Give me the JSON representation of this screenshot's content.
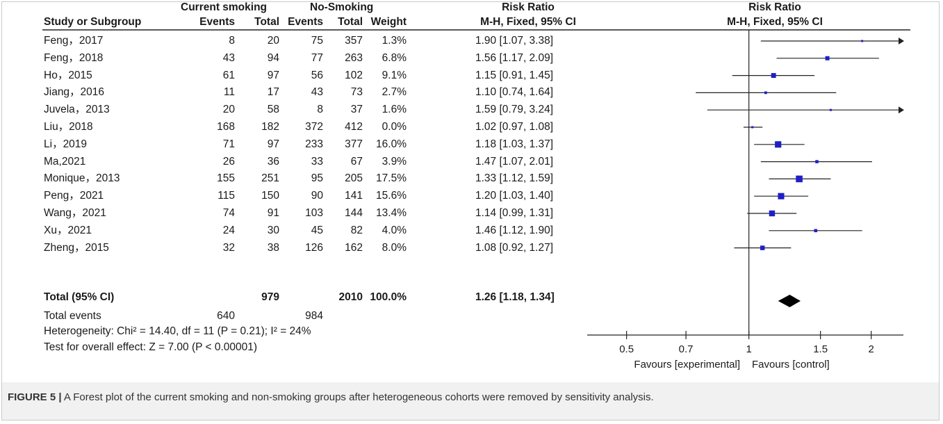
{
  "table": {
    "group_headers": {
      "experimental": "Current smoking",
      "control": "No-Smoking",
      "effect": "Risk Ratio",
      "plot": "Risk Ratio"
    },
    "columns": {
      "study": "Study or Subgroup",
      "events1": "Events",
      "total1": "Total",
      "events2": "Events",
      "total2": "Total",
      "weight": "Weight",
      "ci": "M-H, Fixed, 95% CI",
      "plot_ci": "M-H, Fixed, 95% CI"
    },
    "rows": [
      {
        "study": "Feng，2017",
        "e1": "8",
        "t1": "20",
        "e2": "75",
        "t2": "357",
        "weight": "1.3%",
        "ci": "1.90 [1.07, 3.38]"
      },
      {
        "study": "Feng，2018",
        "e1": "43",
        "t1": "94",
        "e2": "77",
        "t2": "263",
        "weight": "6.8%",
        "ci": "1.56 [1.17, 2.09]"
      },
      {
        "study": "Ho，2015",
        "e1": "61",
        "t1": "97",
        "e2": "56",
        "t2": "102",
        "weight": "9.1%",
        "ci": "1.15 [0.91, 1.45]"
      },
      {
        "study": "Jiang，2016",
        "e1": "11",
        "t1": "17",
        "e2": "43",
        "t2": "73",
        "weight": "2.7%",
        "ci": "1.10 [0.74, 1.64]"
      },
      {
        "study": "Juvela，2013",
        "e1": "20",
        "t1": "58",
        "e2": "8",
        "t2": "37",
        "weight": "1.6%",
        "ci": "1.59 [0.79, 3.24]"
      },
      {
        "study": "Liu，2018",
        "e1": "168",
        "t1": "182",
        "e2": "372",
        "t2": "412",
        "weight": "0.0%",
        "ci": "1.02 [0.97, 1.08]"
      },
      {
        "study": "Li，2019",
        "e1": "71",
        "t1": "97",
        "e2": "233",
        "t2": "377",
        "weight": "16.0%",
        "ci": "1.18 [1.03, 1.37]"
      },
      {
        "study": "Ma,2021",
        "e1": "26",
        "t1": "36",
        "e2": "33",
        "t2": "67",
        "weight": "3.9%",
        "ci": "1.47 [1.07, 2.01]"
      },
      {
        "study": "Monique，2013",
        "e1": "155",
        "t1": "251",
        "e2": "95",
        "t2": "205",
        "weight": "17.5%",
        "ci": "1.33 [1.12, 1.59]"
      },
      {
        "study": "Peng，2021",
        "e1": "115",
        "t1": "150",
        "e2": "90",
        "t2": "141",
        "weight": "15.6%",
        "ci": "1.20 [1.03, 1.40]"
      },
      {
        "study": "Wang，2021",
        "e1": "74",
        "t1": "91",
        "e2": "103",
        "t2": "144",
        "weight": "13.4%",
        "ci": "1.14 [0.99, 1.31]"
      },
      {
        "study": "Xu，2021",
        "e1": "24",
        "t1": "30",
        "e2": "45",
        "t2": "82",
        "weight": "4.0%",
        "ci": "1.46 [1.12, 1.90]"
      },
      {
        "study": "Zheng，2015",
        "e1": "32",
        "t1": "38",
        "e2": "126",
        "t2": "162",
        "weight": "8.0%",
        "ci": "1.08 [0.92, 1.27]"
      }
    ],
    "total": {
      "label": "Total (95% CI)",
      "t1": "979",
      "t2": "2010",
      "weight": "100.0%",
      "ci": "1.26 [1.18, 1.34]"
    },
    "total_events": {
      "label": "Total events",
      "e1": "640",
      "e2": "984"
    },
    "heterogeneity": "Heterogeneity: Chi² = 14.40, df = 11 (P = 0.21); I² = 24%",
    "overall_effect": "Test for overall effect: Z = 7.00 (P < 0.00001)"
  },
  "chart_data": {
    "type": "scatter",
    "scale": "log",
    "xlim": [
      0.4,
      2.4
    ],
    "xticks": [
      0.5,
      0.7,
      1,
      1.5,
      2
    ],
    "xtick_labels": [
      "0.5",
      "0.7",
      "1",
      "1.5",
      "2"
    ],
    "reference_line": 1,
    "xlabel_left": "Favours [experimental]",
    "xlabel_right": "Favours [control]",
    "studies": [
      {
        "name": "Feng，2017",
        "rr": 1.9,
        "lo": 1.07,
        "hi": 3.38,
        "weight": 1.3
      },
      {
        "name": "Feng，2018",
        "rr": 1.56,
        "lo": 1.17,
        "hi": 2.09,
        "weight": 6.8
      },
      {
        "name": "Ho，2015",
        "rr": 1.15,
        "lo": 0.91,
        "hi": 1.45,
        "weight": 9.1
      },
      {
        "name": "Jiang，2016",
        "rr": 1.1,
        "lo": 0.74,
        "hi": 1.64,
        "weight": 2.7
      },
      {
        "name": "Juvela，2013",
        "rr": 1.59,
        "lo": 0.79,
        "hi": 3.24,
        "weight": 1.6
      },
      {
        "name": "Liu，2018",
        "rr": 1.02,
        "lo": 0.97,
        "hi": 1.08,
        "weight": 0.0
      },
      {
        "name": "Li，2019",
        "rr": 1.18,
        "lo": 1.03,
        "hi": 1.37,
        "weight": 16.0
      },
      {
        "name": "Ma,2021",
        "rr": 1.47,
        "lo": 1.07,
        "hi": 2.01,
        "weight": 3.9
      },
      {
        "name": "Monique，2013",
        "rr": 1.33,
        "lo": 1.12,
        "hi": 1.59,
        "weight": 17.5
      },
      {
        "name": "Peng，2021",
        "rr": 1.2,
        "lo": 1.03,
        "hi": 1.4,
        "weight": 15.6
      },
      {
        "name": "Wang，2021",
        "rr": 1.14,
        "lo": 0.99,
        "hi": 1.31,
        "weight": 13.4
      },
      {
        "name": "Xu，2021",
        "rr": 1.46,
        "lo": 1.12,
        "hi": 1.9,
        "weight": 4.0
      },
      {
        "name": "Zheng，2015",
        "rr": 1.08,
        "lo": 0.92,
        "hi": 1.27,
        "weight": 8.0
      }
    ],
    "pooled": {
      "rr": 1.26,
      "lo": 1.18,
      "hi": 1.34
    },
    "colors": {
      "study_marker": "#1f1fc8",
      "lines": "#222222",
      "diamond": "#000000"
    }
  },
  "caption": {
    "label": "FIGURE 5 |",
    "text": " A Forest plot of the current smoking and non-smoking groups after heterogeneous cohorts were removed by sensitivity analysis."
  }
}
